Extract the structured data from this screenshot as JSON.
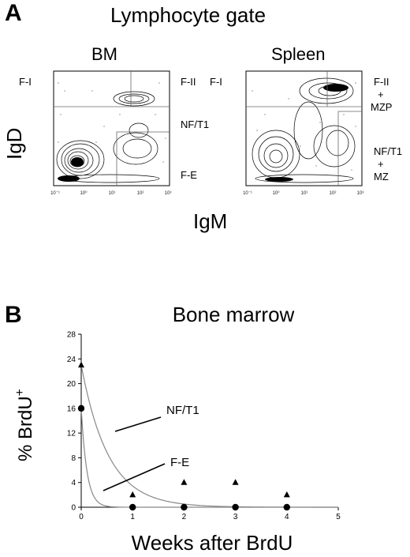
{
  "panel_a": {
    "letter": "A",
    "title": "Lymphocyte gate",
    "x_axis_label": "IgM",
    "y_axis_label": "IgD",
    "tick_labels": [
      "10⁻¹",
      "10⁰",
      "10¹",
      "10²",
      "10³"
    ],
    "bm": {
      "title": "BM",
      "gates": {
        "fi": "F-I",
        "fii": "F-II",
        "nft1": "NF/T1",
        "fe": "F-E"
      }
    },
    "spleen": {
      "title": "Spleen",
      "gates": {
        "fi": "F-I",
        "fii_1": "F-II",
        "fii_2": "+",
        "fii_3": "MZP",
        "nf_1": "NF/T1",
        "nf_2": "+",
        "nf_3": "MZ"
      }
    }
  },
  "panel_b": {
    "letter": "B"
  },
  "chart_data": {
    "type": "scatter",
    "title": "Bone marrow",
    "xlabel": "Weeks after BrdU",
    "ylabel": "% BrdU+",
    "xlim": [
      0,
      5
    ],
    "ylim": [
      0,
      28
    ],
    "xticks": [
      0,
      1,
      2,
      3,
      4,
      5
    ],
    "yticks": [
      0,
      4,
      8,
      12,
      16,
      20,
      24,
      28
    ],
    "series": [
      {
        "name": "NF/T1",
        "marker": "triangle",
        "x": [
          0,
          1,
          2,
          3,
          4
        ],
        "y": [
          23,
          2,
          4,
          4,
          2
        ]
      },
      {
        "name": "F-E",
        "marker": "circle",
        "x": [
          0,
          1,
          2,
          3,
          4
        ],
        "y": [
          16,
          0,
          0,
          0,
          0
        ]
      }
    ],
    "annotations": [
      "NF/T1",
      "F-E"
    ],
    "fit_curves": true,
    "colors": {
      "points": "#000000",
      "curve": "#888888"
    }
  }
}
